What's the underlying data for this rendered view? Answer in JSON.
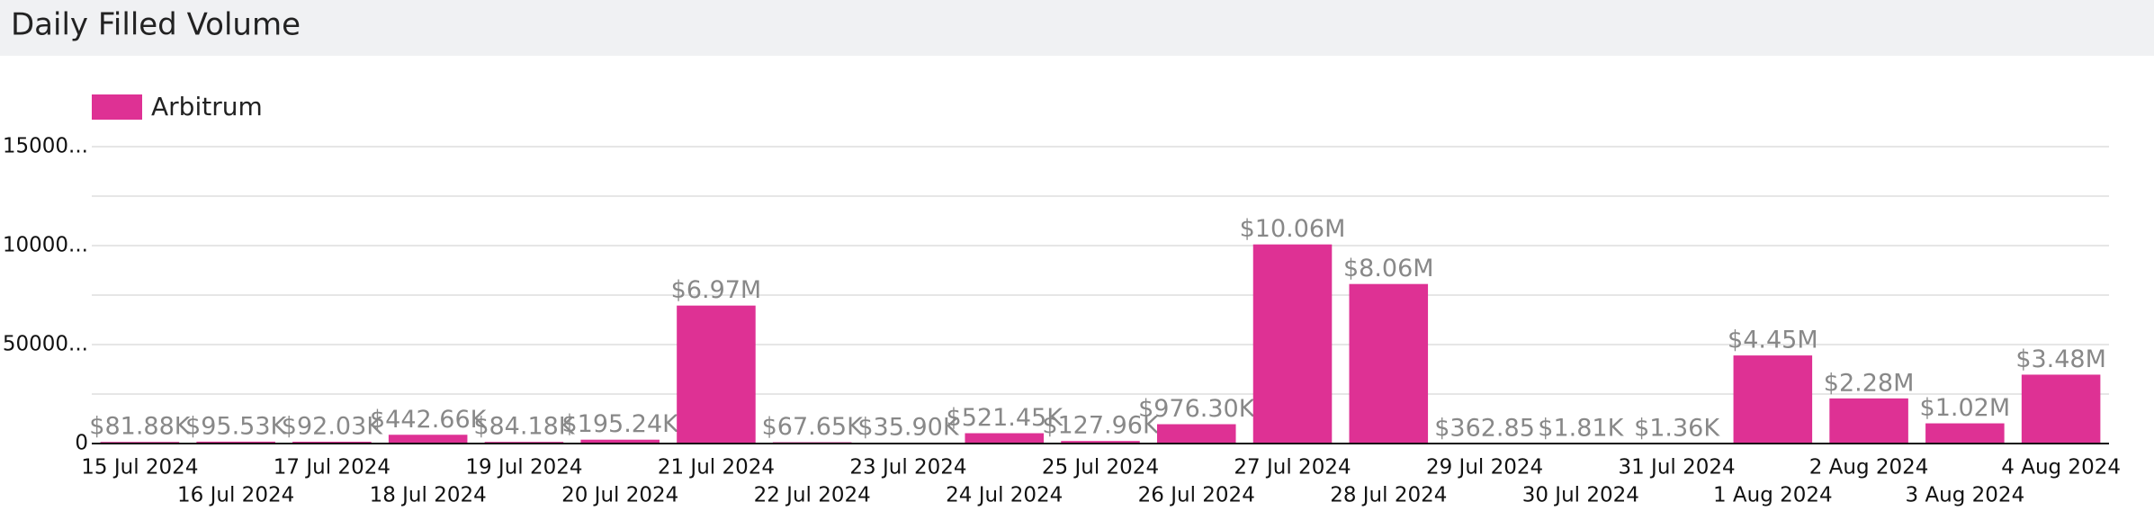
{
  "chart_data": {
    "type": "bar",
    "title": "Daily Filled Volume",
    "categories": [
      "15 Jul 2024",
      "16 Jul 2024",
      "17 Jul 2024",
      "18 Jul 2024",
      "19 Jul 2024",
      "20 Jul 2024",
      "21 Jul 2024",
      "22 Jul 2024",
      "23 Jul 2024",
      "24 Jul 2024",
      "25 Jul 2024",
      "26 Jul 2024",
      "27 Jul 2024",
      "28 Jul 2024",
      "29 Jul 2024",
      "30 Jul 2024",
      "31 Jul 2024",
      "1 Aug 2024",
      "2 Aug 2024",
      "3 Aug 2024",
      "4 Aug 2024"
    ],
    "series": [
      {
        "name": "Arbitrum",
        "color": "#de3194",
        "values": [
          81880,
          95530,
          92030,
          442660,
          84180,
          195240,
          6970000,
          67650,
          35900,
          521450,
          127960,
          976300,
          10060000,
          8060000,
          362.85,
          1810,
          1360,
          4450000,
          2280000,
          1020000,
          3480000
        ],
        "value_labels": [
          "$81.88K",
          "$95.53K",
          "$92.03K",
          "$442.66K",
          "$84.18K",
          "$195.24K",
          "$6.97M",
          "$67.65K",
          "$35.90K",
          "$521.45K",
          "$127.96K",
          "$976.30K",
          "$10.06M",
          "$8.06M",
          "$362.85",
          "$1.81K",
          "$1.36K",
          "$4.45M",
          "$2.28M",
          "$1.02M",
          "$3.48M"
        ]
      }
    ],
    "ylim": [
      0,
      15000000
    ],
    "yticks": [
      0,
      {
        "value": 5000000,
        "label": "50000..."
      },
      {
        "value": 10000000,
        "label": "10000..."
      },
      {
        "value": 15000000,
        "label": "15000..."
      }
    ],
    "minor_yticks": [
      2500000,
      7500000,
      12500000
    ],
    "grid": true,
    "legend": "top-left"
  }
}
